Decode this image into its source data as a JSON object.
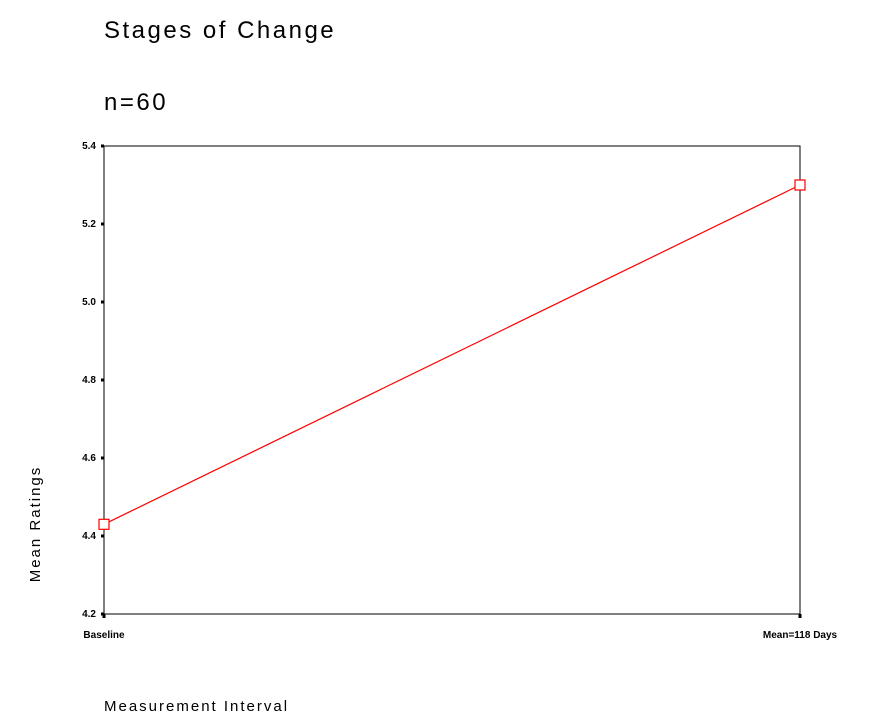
{
  "chart_data": {
    "type": "line",
    "title": "Stages of Change",
    "subtitle": "n=60",
    "xlabel": "Measurement Interval",
    "ylabel": "Mean Ratings",
    "categories": [
      "Baseline",
      "Mean=118 Days"
    ],
    "series": [
      {
        "values": [
          4.43,
          5.3
        ],
        "color": "#ff0000",
        "marker": "square"
      }
    ],
    "ylim": [
      4.2,
      5.4
    ],
    "yticks": [
      4.2,
      4.4,
      4.6,
      4.8,
      5.0,
      5.2,
      5.4
    ],
    "ytick_labels": [
      "4.2",
      "4.4",
      "4.6",
      "4.8",
      "5.0",
      "5.2",
      "5.4"
    ],
    "grid": false
  }
}
